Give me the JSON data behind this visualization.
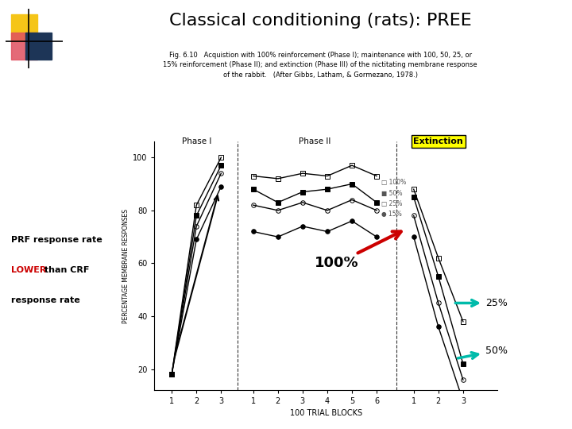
{
  "title": "Classical conditioning (rats): PREE",
  "title_fontsize": 16,
  "background_color": "#ffffff",
  "fig_caption": "Fig. 6.10   Acquistion with 100% reinforcement (Phase I); maintenance with 100, 50, 25, or\n15% reinforcement (Phase II); and extinction (Phase III) of the nictitating membrane response\nof the rabbit.   (After Gibbs, Latham, & Gormezano, 1978.)",
  "ylabel": "PERCENTAGE MEMBRANE RESPONSES",
  "xlabel": "100 TRIAL BLOCKS",
  "ylim": [
    12,
    106
  ],
  "phase1_label": "Phase I",
  "phase2_label": "Phase II",
  "extinction_label": "Extinction",
  "extinction_bg": "#ffff00",
  "arrow_100_color": "#cc0000",
  "arrow_teal_color": "#00bbaa",
  "label_25": "25%",
  "label_50": "50%",
  "label_15": "15%",
  "label_100pct": "100%",
  "prf_lower_color": "#cc0000",
  "phase1_100": [
    18,
    82,
    100
  ],
  "phase1_50": [
    18,
    78,
    97
  ],
  "phase1_25": [
    18,
    74,
    94
  ],
  "phase1_15": [
    18,
    69,
    89
  ],
  "phase2_100": [
    93,
    92,
    94,
    93,
    97,
    93
  ],
  "phase2_50": [
    88,
    83,
    87,
    88,
    90,
    83
  ],
  "phase2_25": [
    82,
    80,
    83,
    80,
    84,
    80
  ],
  "phase2_15": [
    72,
    70,
    74,
    72,
    76,
    70
  ],
  "ext_100": [
    88,
    62,
    38
  ],
  "ext_50": [
    85,
    55,
    22
  ],
  "ext_25": [
    78,
    45,
    16
  ],
  "ext_15": [
    70,
    36,
    8
  ]
}
